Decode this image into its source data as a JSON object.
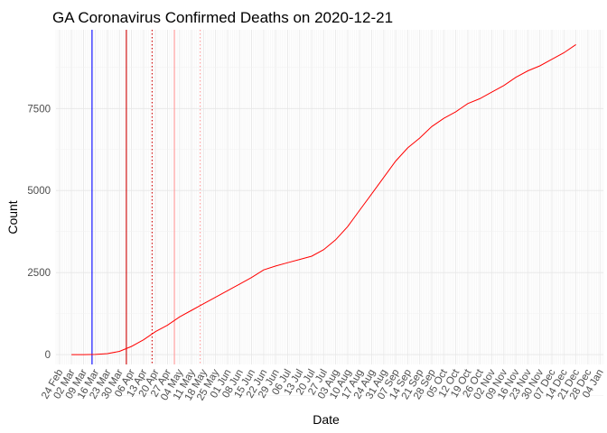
{
  "chart_data": {
    "type": "line",
    "title": "GA Coronavirus Confirmed Deaths on 2020-12-21",
    "xlabel": "Date",
    "ylabel": "Count",
    "x_start": "2020-02-24",
    "xlim": [
      "2020-02-22",
      "2021-01-06"
    ],
    "ylim": [
      -300,
      9900
    ],
    "y_ticks": [
      0,
      2500,
      5000,
      7500
    ],
    "y_tick_labels": [
      "0",
      "2500",
      "5000",
      "7500"
    ],
    "x_ticks": [
      "2020-02-24",
      "2020-03-02",
      "2020-03-09",
      "2020-03-16",
      "2020-03-23",
      "2020-03-30",
      "2020-04-06",
      "2020-04-13",
      "2020-04-20",
      "2020-04-27",
      "2020-05-04",
      "2020-05-11",
      "2020-05-18",
      "2020-05-25",
      "2020-06-01",
      "2020-06-08",
      "2020-06-15",
      "2020-06-22",
      "2020-06-29",
      "2020-07-06",
      "2020-07-13",
      "2020-07-20",
      "2020-07-27",
      "2020-08-03",
      "2020-08-10",
      "2020-08-17",
      "2020-08-24",
      "2020-08-31",
      "2020-09-07",
      "2020-09-14",
      "2020-09-21",
      "2020-09-28",
      "2020-10-05",
      "2020-10-12",
      "2020-10-19",
      "2020-10-26",
      "2020-11-02",
      "2020-11-09",
      "2020-11-16",
      "2020-11-23",
      "2020-11-30",
      "2020-12-07",
      "2020-12-14",
      "2020-12-21",
      "2020-12-28",
      "2021-01-04"
    ],
    "x_tick_labels": [
      "24 Feb",
      "02 Mar",
      "09 Mar",
      "16 Mar",
      "23 Mar",
      "30 Mar",
      "06 Apr",
      "13 Apr",
      "20 Apr",
      "27 Apr",
      "04 May",
      "11 May",
      "18 May",
      "25 May",
      "01 Jun",
      "08 Jun",
      "15 Jun",
      "22 Jun",
      "29 Jun",
      "06 Jul",
      "13 Jul",
      "20 Jul",
      "27 Jul",
      "03 Aug",
      "10 Aug",
      "17 Aug",
      "24 Aug",
      "31 Aug",
      "07 Sep",
      "14 Sep",
      "21 Sep",
      "28 Sep",
      "05 Oct",
      "12 Oct",
      "19 Oct",
      "26 Oct",
      "02 Nov",
      "09 Nov",
      "16 Nov",
      "23 Nov",
      "30 Nov",
      "07 Dec",
      "14 Dec",
      "21 Dec",
      "28 Dec",
      "04 Jan"
    ],
    "grid": true,
    "series": [
      {
        "color": "#ff0000",
        "points": [
          [
            "2020-03-02",
            0
          ],
          [
            "2020-03-09",
            0
          ],
          [
            "2020-03-16",
            5
          ],
          [
            "2020-03-23",
            30
          ],
          [
            "2020-03-30",
            100
          ],
          [
            "2020-04-06",
            250
          ],
          [
            "2020-04-13",
            450
          ],
          [
            "2020-04-20",
            700
          ],
          [
            "2020-04-27",
            900
          ],
          [
            "2020-05-04",
            1150
          ],
          [
            "2020-05-11",
            1350
          ],
          [
            "2020-05-18",
            1550
          ],
          [
            "2020-05-25",
            1750
          ],
          [
            "2020-06-01",
            1950
          ],
          [
            "2020-06-08",
            2150
          ],
          [
            "2020-06-15",
            2350
          ],
          [
            "2020-06-22",
            2580
          ],
          [
            "2020-06-29",
            2700
          ],
          [
            "2020-07-06",
            2800
          ],
          [
            "2020-07-13",
            2900
          ],
          [
            "2020-07-20",
            3000
          ],
          [
            "2020-07-27",
            3200
          ],
          [
            "2020-08-03",
            3500
          ],
          [
            "2020-08-10",
            3900
          ],
          [
            "2020-08-17",
            4400
          ],
          [
            "2020-08-24",
            4900
          ],
          [
            "2020-08-31",
            5400
          ],
          [
            "2020-09-07",
            5900
          ],
          [
            "2020-09-14",
            6300
          ],
          [
            "2020-09-21",
            6600
          ],
          [
            "2020-09-28",
            6950
          ],
          [
            "2020-10-05",
            7200
          ],
          [
            "2020-10-12",
            7400
          ],
          [
            "2020-10-19",
            7650
          ],
          [
            "2020-10-26",
            7800
          ],
          [
            "2020-11-02",
            8000
          ],
          [
            "2020-11-09",
            8200
          ],
          [
            "2020-11-16",
            8450
          ],
          [
            "2020-11-23",
            8650
          ],
          [
            "2020-11-30",
            8800
          ],
          [
            "2020-12-07",
            9000
          ],
          [
            "2020-12-14",
            9200
          ],
          [
            "2020-12-21",
            9450
          ]
        ]
      }
    ],
    "vertical_lines": [
      {
        "date": "2020-03-14",
        "color": "#0000ff",
        "style": "solid"
      },
      {
        "date": "2020-04-03",
        "color": "#cc0000",
        "style": "solid"
      },
      {
        "date": "2020-04-18",
        "color": "#cc0000",
        "style": "dotted"
      },
      {
        "date": "2020-05-01",
        "color": "#ff9999",
        "style": "solid"
      },
      {
        "date": "2020-05-16",
        "color": "#ff9999",
        "style": "dotted"
      }
    ]
  }
}
